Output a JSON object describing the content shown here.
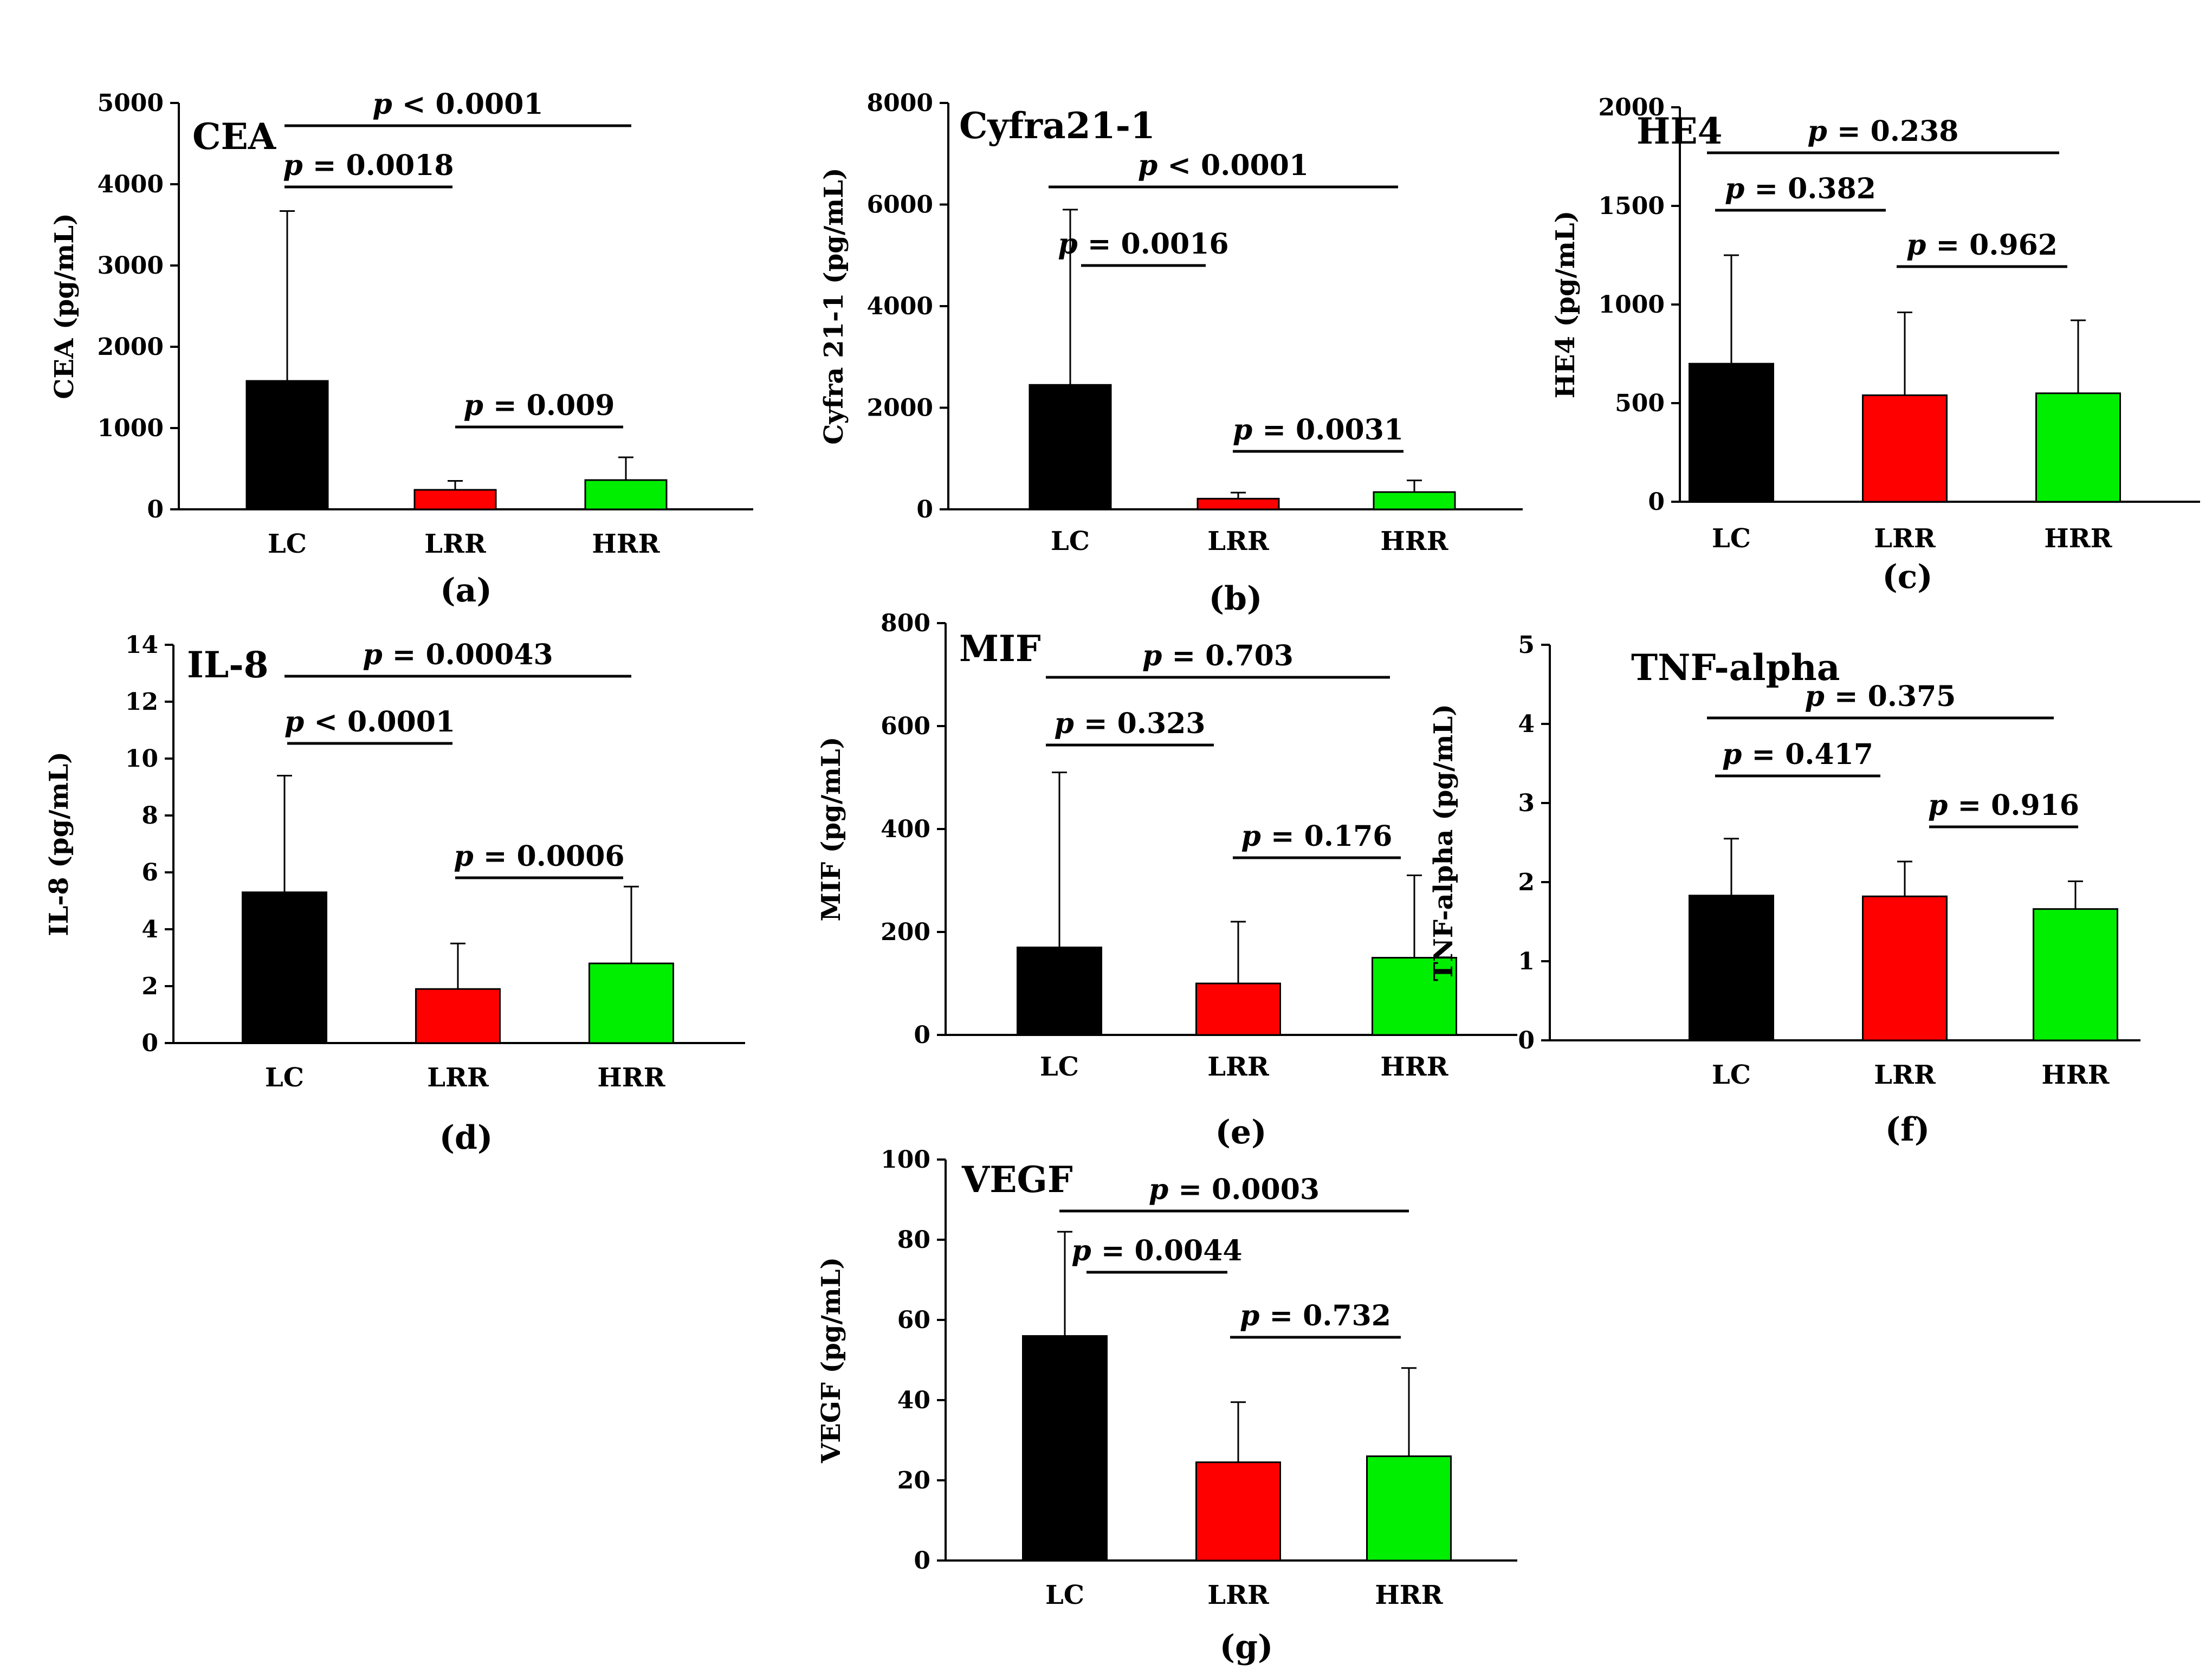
{
  "chart_data": [
    {
      "type": "bar",
      "title": "CEA",
      "caption": "(a)",
      "ylabel": "CEA (pg/mL)",
      "categories": [
        "LC",
        "LRR",
        "HRR"
      ],
      "values": [
        1580,
        240,
        360
      ],
      "errors": [
        2090,
        110,
        280
      ],
      "colors": [
        "#000000",
        "#ff0000",
        "#00ee00"
      ],
      "ylim": [
        0,
        5000
      ],
      "yticks": [
        "0",
        "1000",
        "2000",
        "3000",
        "4000",
        "5000"
      ],
      "comparisons": [
        {
          "from": 0,
          "to": 2,
          "label": "p < 0.0001"
        },
        {
          "from": 0,
          "to": 1,
          "label": "p = 0.0018"
        },
        {
          "from": 1,
          "to": 2,
          "label": "p = 0.009"
        }
      ]
    },
    {
      "type": "bar",
      "title": "Cyfra21-1",
      "caption": "(b)",
      "ylabel": "Cyfra 21-1 (pg/mL)",
      "categories": [
        "LC",
        "LRR",
        "HRR"
      ],
      "values": [
        2450,
        210,
        340
      ],
      "errors": [
        3450,
        120,
        230
      ],
      "colors": [
        "#000000",
        "#ff0000",
        "#00ee00"
      ],
      "ylim": [
        0,
        8000
      ],
      "yticks": [
        "0",
        "2000",
        "4000",
        "6000",
        "8000"
      ],
      "comparisons": [
        {
          "from": 0,
          "to": 2,
          "label": "p < 0.0001"
        },
        {
          "from": 0,
          "to": 1,
          "label": "p = 0.0016"
        },
        {
          "from": 1,
          "to": 2,
          "label": "p = 0.0031"
        }
      ]
    },
    {
      "type": "bar",
      "title": "HE4",
      "caption": "(c)",
      "ylabel": "HE4 (pg/mL)",
      "categories": [
        "LC",
        "LRR",
        "HRR"
      ],
      "values": [
        700,
        540,
        550
      ],
      "errors": [
        550,
        420,
        370
      ],
      "colors": [
        "#000000",
        "#ff0000",
        "#00ee00"
      ],
      "ylim": [
        0,
        2000
      ],
      "yticks": [
        "0",
        "500",
        "1000",
        "1500",
        "2000"
      ],
      "comparisons": [
        {
          "from": 0,
          "to": 2,
          "label": "p = 0.238"
        },
        {
          "from": 0,
          "to": 1,
          "label": "p = 0.382"
        },
        {
          "from": 1,
          "to": 2,
          "label": "p = 0.962"
        }
      ]
    },
    {
      "type": "bar",
      "title": "IL-8",
      "caption": "(d)",
      "ylabel": "IL-8 (pg/mL)",
      "categories": [
        "LC",
        "LRR",
        "HRR"
      ],
      "values": [
        5.3,
        1.9,
        2.8
      ],
      "errors": [
        4.1,
        1.6,
        2.7
      ],
      "colors": [
        "#000000",
        "#ff0000",
        "#00ee00"
      ],
      "ylim": [
        0,
        14
      ],
      "yticks": [
        "0",
        "2",
        "4",
        "6",
        "8",
        "10",
        "12",
        "14"
      ],
      "comparisons": [
        {
          "from": 0,
          "to": 2,
          "label": "p = 0.00043"
        },
        {
          "from": 0,
          "to": 1,
          "label": "p < 0.0001"
        },
        {
          "from": 1,
          "to": 2,
          "label": "p = 0.0006"
        }
      ]
    },
    {
      "type": "bar",
      "title": "MIF",
      "caption": "(e)",
      "ylabel": "MIF (pg/mL)",
      "categories": [
        "LC",
        "LRR",
        "HRR"
      ],
      "values": [
        170,
        100,
        150
      ],
      "errors": [
        340,
        120,
        160
      ],
      "colors": [
        "#000000",
        "#ff0000",
        "#00ee00"
      ],
      "ylim": [
        0,
        800
      ],
      "yticks": [
        "0",
        "200",
        "400",
        "600",
        "800"
      ],
      "comparisons": [
        {
          "from": 0,
          "to": 2,
          "label": "p = 0.703"
        },
        {
          "from": 0,
          "to": 1,
          "label": "p = 0.323"
        },
        {
          "from": 1,
          "to": 2,
          "label": "p = 0.176"
        }
      ]
    },
    {
      "type": "bar",
      "title": "TNF-alpha",
      "caption": "(f)",
      "ylabel": "TNF-alpha (pg/mL)",
      "categories": [
        "LC",
        "LRR",
        "HRR"
      ],
      "values": [
        1.83,
        1.82,
        1.66
      ],
      "errors": [
        0.72,
        0.44,
        0.35
      ],
      "colors": [
        "#000000",
        "#ff0000",
        "#00ee00"
      ],
      "ylim": [
        0,
        5
      ],
      "yticks": [
        "0",
        "1",
        "2",
        "3",
        "4",
        "5"
      ],
      "comparisons": [
        {
          "from": 0,
          "to": 2,
          "label": "p = 0.375"
        },
        {
          "from": 0,
          "to": 1,
          "label": "p = 0.417"
        },
        {
          "from": 1,
          "to": 2,
          "label": "p = 0.916"
        }
      ]
    },
    {
      "type": "bar",
      "title": "VEGF",
      "caption": "(g)",
      "ylabel": "VEGF (pg/mL)",
      "categories": [
        "LC",
        "LRR",
        "HRR"
      ],
      "values": [
        56,
        24.5,
        26
      ],
      "errors": [
        26,
        15,
        22
      ],
      "colors": [
        "#000000",
        "#ff0000",
        "#00ee00"
      ],
      "ylim": [
        0,
        100
      ],
      "yticks": [
        "0",
        "20",
        "40",
        "60",
        "80",
        "100"
      ],
      "comparisons": [
        {
          "from": 0,
          "to": 2,
          "label": "p = 0.0003"
        },
        {
          "from": 0,
          "to": 1,
          "label": "p = 0.0044"
        },
        {
          "from": 1,
          "to": 2,
          "label": "p = 0.732"
        }
      ]
    }
  ]
}
